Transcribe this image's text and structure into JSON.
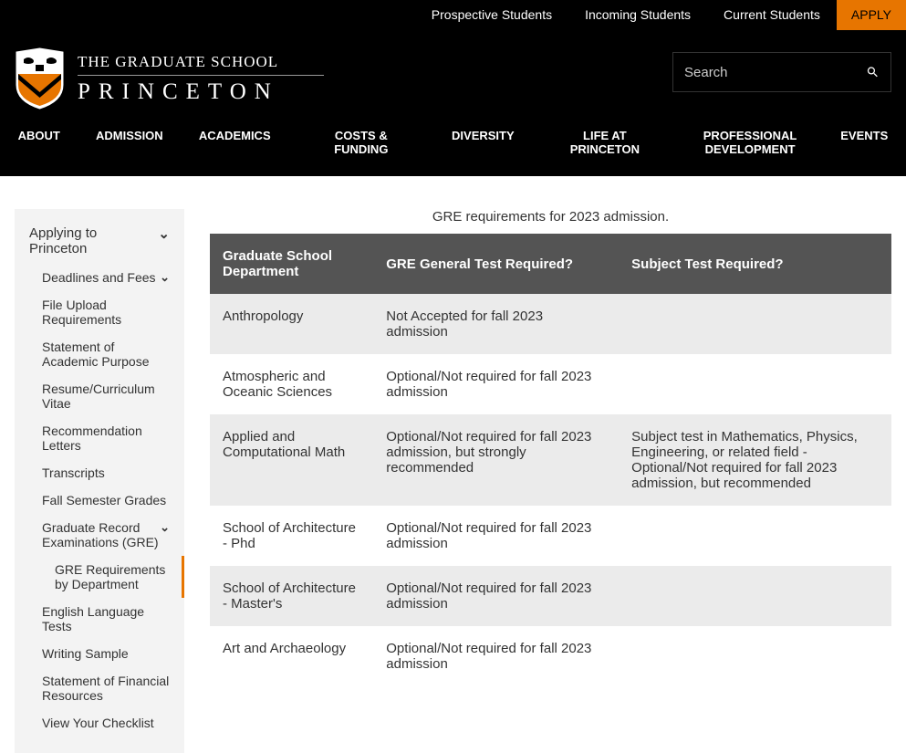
{
  "topNav": {
    "links": [
      "Prospective Students",
      "Incoming Students",
      "Current Students"
    ],
    "apply": "APPLY"
  },
  "logo": {
    "line1": "THE GRADUATE SCHOOL",
    "line2": "PRINCETON"
  },
  "search": {
    "placeholder": "Search"
  },
  "mainNav": [
    "ABOUT",
    "ADMISSION",
    "ACADEMICS",
    "COSTS & FUNDING",
    "DIVERSITY",
    "LIFE AT PRINCETON",
    "PROFESSIONAL DEVELOPMENT",
    "EVENTS"
  ],
  "sidebar": {
    "heading": "Applying to Princeton",
    "items": [
      {
        "label": "Deadlines and Fees",
        "expandable": true
      },
      {
        "label": "File Upload Requirements"
      },
      {
        "label": "Statement of Academic Purpose"
      },
      {
        "label": "Resume/Curriculum Vitae"
      },
      {
        "label": "Recommendation Letters"
      },
      {
        "label": "Transcripts"
      },
      {
        "label": "Fall Semester Grades"
      },
      {
        "label": "Graduate Record Examinations (GRE)",
        "expandable": true
      },
      {
        "label": "GRE Requirements by Department",
        "sub": true
      },
      {
        "label": "English Language Tests"
      },
      {
        "label": "Writing Sample"
      },
      {
        "label": "Statement of Financial Resources"
      },
      {
        "label": "View Your Checklist"
      }
    ]
  },
  "table": {
    "caption": "GRE requirements for 2023 admission.",
    "columns": [
      "Graduate School Department",
      "GRE General Test Required?",
      "Subject Test Required?"
    ],
    "rows": [
      [
        "Anthropology",
        "Not Accepted for fall 2023 admission",
        ""
      ],
      [
        "Atmospheric and Oceanic Sciences",
        "Optional/Not required for fall 2023 admission",
        ""
      ],
      [
        "Applied and Computational Math",
        "Optional/Not required for fall 2023 admission, but strongly recommended",
        "Subject test in Mathematics, Physics, Engineering, or related field - Optional/Not required for fall 2023 admission, but recommended"
      ],
      [
        "School of Architecture - Phd",
        "Optional/Not required for fall 2023 admission",
        ""
      ],
      [
        "School of Architecture - Master's",
        "Optional/Not required for fall 2023 admission",
        ""
      ],
      [
        "Art and Archaeology",
        "Optional/Not required for fall 2023 admission",
        ""
      ]
    ]
  },
  "colors": {
    "accent": "#e77500",
    "headerBg": "#000000",
    "tableHeader": "#545454",
    "rowOdd": "#ebebeb",
    "sidebarBg": "#f3f3f3"
  }
}
